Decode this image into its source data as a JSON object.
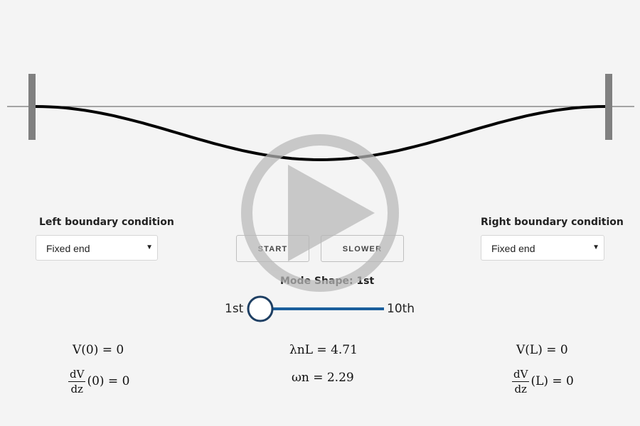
{
  "left_boundary": {
    "label": "Left boundary condition",
    "selected": "Fixed end"
  },
  "right_boundary": {
    "label": "Right boundary condition",
    "selected": "Fixed end"
  },
  "buttons": {
    "start": "START",
    "slower": "SLOWER"
  },
  "mode": {
    "label": "Mode Shape: 1st",
    "min_label": "1st",
    "max_label": "10th",
    "value": 1,
    "min": 1,
    "max": 10
  },
  "equations": {
    "left_v_lhs": "V(0) = 0",
    "left_dv_num": "dV",
    "left_dv_den": "dz",
    "left_dv_rhs": "(0) = 0",
    "center_lambda": "λnL = 4.71",
    "center_omega": "ωn = 2.29",
    "right_v_lhs": "V(L) = 0",
    "right_dv_num": "dV",
    "right_dv_den": "dz",
    "right_dv_rhs": "(L) = 0"
  },
  "colors": {
    "background": "#f4f4f4",
    "beam": "#000000",
    "support": "#808080",
    "slider_track": "#1a5e9c",
    "slider_knob_border": "#1e3f63",
    "play_overlay": "#b8b8b8"
  },
  "icons": {
    "play": "play-icon",
    "dropdown": "chevron-down-icon"
  }
}
